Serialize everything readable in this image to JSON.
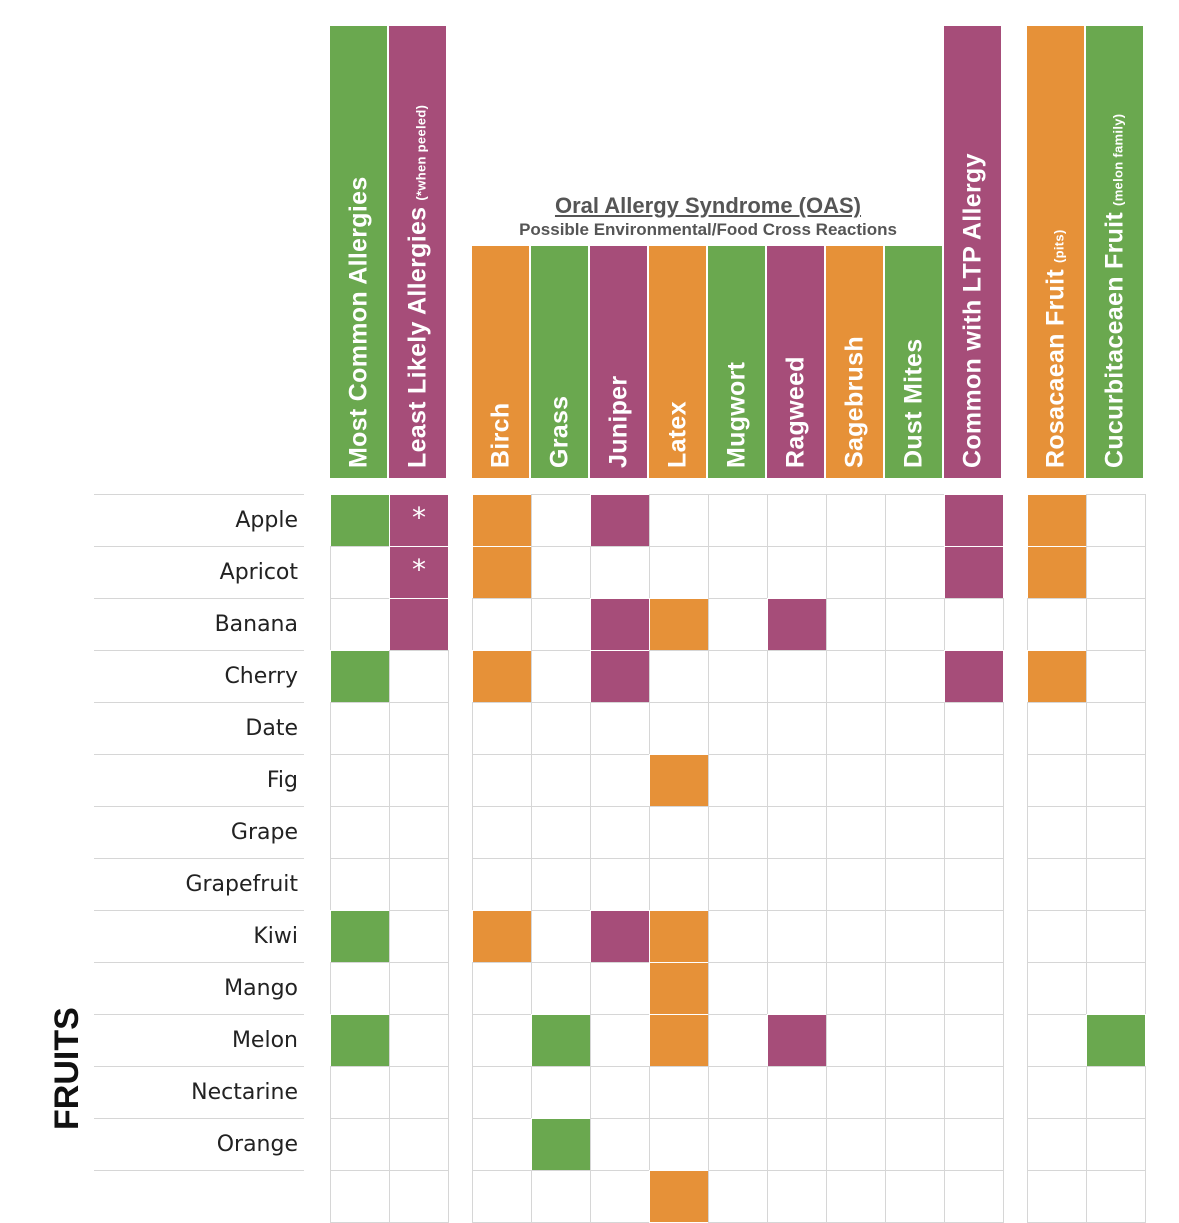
{
  "colors": {
    "green": "#6aa84f",
    "purple": "#a64d79",
    "orange": "#e69138",
    "white": "#ffffff",
    "grid": "#d6d6d6"
  },
  "oas_heading": {
    "title": "Oral Allergy Syndrome (OAS)",
    "subtitle": "Possible Environmental/Food Cross Reactions"
  },
  "section_label": "FRUITS",
  "chart_data": {
    "type": "table",
    "columns": [
      {
        "label": "Most Common Allergies",
        "sub": "",
        "color": "green"
      },
      {
        "label": "Least Likely Allergies",
        "sub": "(*when peeled)",
        "color": "purple"
      },
      {
        "label": "Birch",
        "sub": "",
        "color": "orange"
      },
      {
        "label": "Grass",
        "sub": "",
        "color": "green"
      },
      {
        "label": "Juniper",
        "sub": "",
        "color": "purple"
      },
      {
        "label": "Latex",
        "sub": "",
        "color": "orange"
      },
      {
        "label": "Mugwort",
        "sub": "",
        "color": "green"
      },
      {
        "label": "Ragweed",
        "sub": "",
        "color": "purple"
      },
      {
        "label": "Sagebrush",
        "sub": "",
        "color": "orange"
      },
      {
        "label": "Dust Mites",
        "sub": "",
        "color": "green"
      },
      {
        "label": "Common with LTP Allergy",
        "sub": "",
        "color": "purple"
      },
      {
        "label": "Rosacaean Fruit",
        "sub": "(pits)",
        "color": "orange"
      },
      {
        "label": "Cucurbitaceaen Fruit",
        "sub": "(melon family)",
        "color": "green"
      }
    ],
    "rows": [
      {
        "label": "Apple",
        "cells": [
          1,
          1,
          1,
          0,
          1,
          0,
          0,
          0,
          0,
          0,
          1,
          1,
          0
        ],
        "marks": {
          "1": "*"
        }
      },
      {
        "label": "Apricot",
        "cells": [
          0,
          1,
          1,
          0,
          0,
          0,
          0,
          0,
          0,
          0,
          1,
          1,
          0
        ],
        "marks": {
          "1": "*"
        }
      },
      {
        "label": "Banana",
        "cells": [
          0,
          1,
          0,
          0,
          1,
          1,
          0,
          1,
          0,
          0,
          0,
          0,
          0
        ],
        "marks": {}
      },
      {
        "label": "Cherry",
        "cells": [
          1,
          0,
          1,
          0,
          1,
          0,
          0,
          0,
          0,
          0,
          1,
          1,
          0
        ],
        "marks": {}
      },
      {
        "label": "Date",
        "cells": [
          0,
          0,
          0,
          0,
          0,
          0,
          0,
          0,
          0,
          0,
          0,
          0,
          0
        ],
        "marks": {}
      },
      {
        "label": "Fig",
        "cells": [
          0,
          0,
          0,
          0,
          0,
          1,
          0,
          0,
          0,
          0,
          0,
          0,
          0
        ],
        "marks": {}
      },
      {
        "label": "Grape",
        "cells": [
          0,
          0,
          0,
          0,
          0,
          0,
          0,
          0,
          0,
          0,
          0,
          0,
          0
        ],
        "marks": {}
      },
      {
        "label": "Grapefruit",
        "cells": [
          0,
          0,
          0,
          0,
          0,
          0,
          0,
          0,
          0,
          0,
          0,
          0,
          0
        ],
        "marks": {}
      },
      {
        "label": "Kiwi",
        "cells": [
          1,
          0,
          1,
          0,
          1,
          1,
          0,
          0,
          0,
          0,
          0,
          0,
          0
        ],
        "marks": {}
      },
      {
        "label": "Mango",
        "cells": [
          0,
          0,
          0,
          0,
          0,
          1,
          0,
          0,
          0,
          0,
          0,
          0,
          0
        ],
        "marks": {}
      },
      {
        "label": "Melon",
        "cells": [
          1,
          0,
          0,
          1,
          0,
          1,
          0,
          1,
          0,
          0,
          0,
          0,
          1
        ],
        "marks": {}
      },
      {
        "label": "Nectarine",
        "cells": [
          0,
          0,
          0,
          0,
          0,
          0,
          0,
          0,
          0,
          0,
          0,
          0,
          0
        ],
        "marks": {}
      },
      {
        "label": "Orange",
        "cells": [
          0,
          0,
          0,
          1,
          0,
          0,
          0,
          0,
          0,
          0,
          0,
          0,
          0
        ],
        "marks": {}
      },
      {
        "label": "",
        "cells": [
          0,
          0,
          0,
          0,
          0,
          1,
          0,
          0,
          0,
          0,
          0,
          0,
          0
        ],
        "marks": {}
      }
    ]
  }
}
